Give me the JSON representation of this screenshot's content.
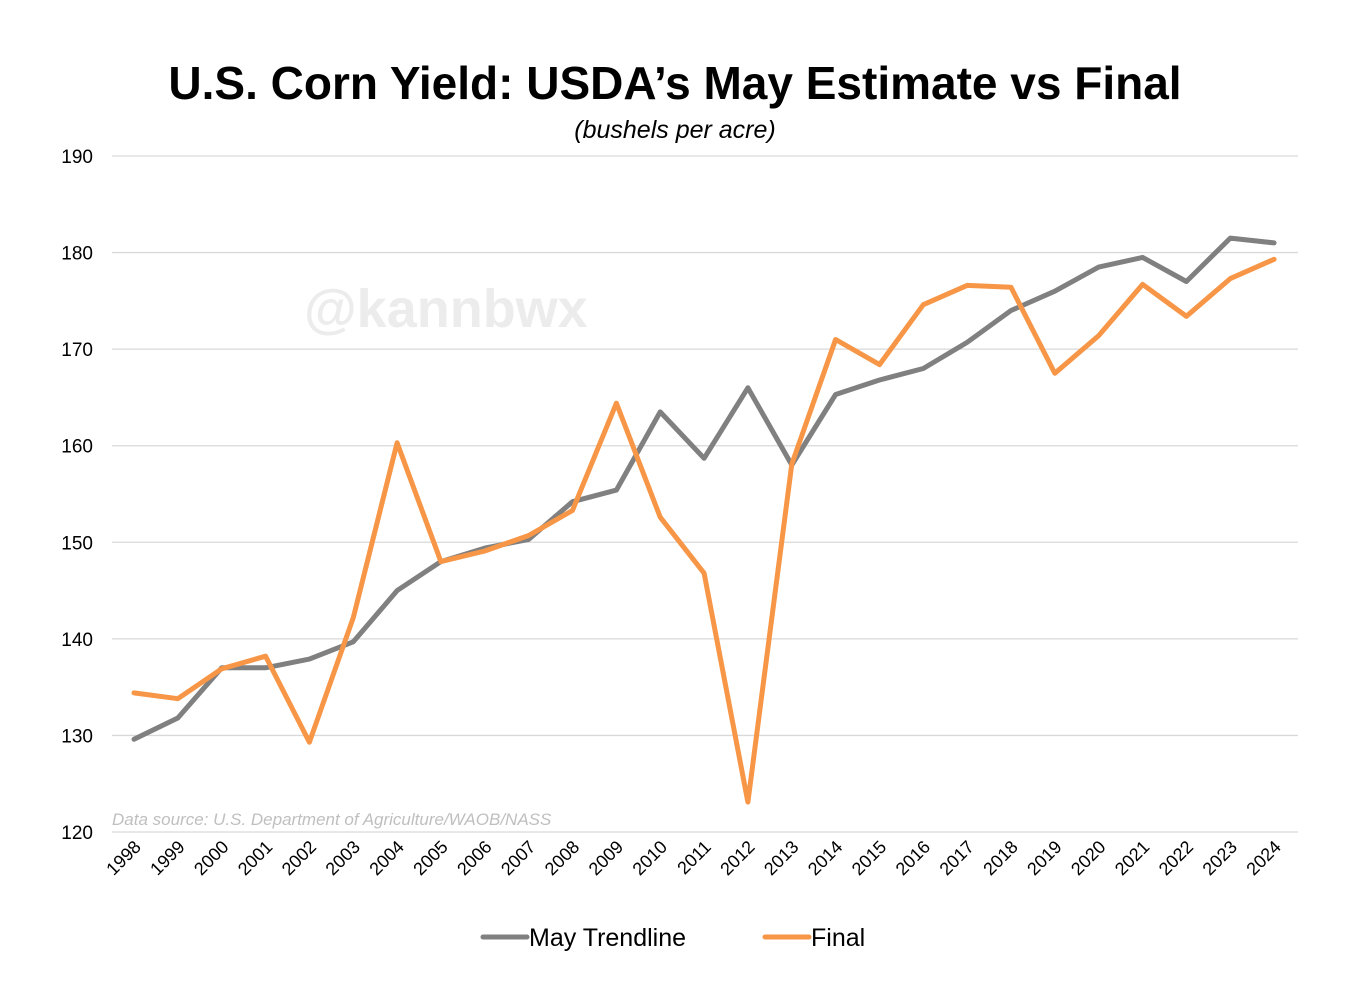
{
  "chart_data": {
    "type": "line",
    "title": "U.S. Corn Yield: USDA’s May Estimate vs Final",
    "subtitle": "(bushels per acre)",
    "xlabel": "",
    "ylabel": "",
    "ylim": [
      120,
      190
    ],
    "yticks": [
      "120",
      "130",
      "140",
      "150",
      "160",
      "170",
      "180",
      "190"
    ],
    "grid": true,
    "legend_position": "bottom",
    "watermark": "@kannbwx",
    "source": "Data source: U.S. Department of Agriculture/WAOB/NASS",
    "categories": [
      "1998",
      "1999",
      "2000",
      "2001",
      "2002",
      "2003",
      "2004",
      "2005",
      "2006",
      "2007",
      "2008",
      "2009",
      "2010",
      "2011",
      "2012",
      "2013",
      "2014",
      "2015",
      "2016",
      "2017",
      "2018",
      "2019",
      "2020",
      "2021",
      "2022",
      "2023",
      "2024"
    ],
    "series": [
      {
        "name": "May Trendline",
        "color": "#808080",
        "values": [
          129.6,
          131.8,
          137.0,
          137.0,
          137.9,
          139.7,
          145.0,
          148.0,
          149.4,
          150.3,
          154.2,
          155.4,
          163.5,
          158.7,
          166.0,
          158.0,
          165.3,
          166.8,
          168.0,
          170.7,
          174.0,
          176.0,
          178.5,
          179.5,
          177.0,
          181.5,
          181.0
        ]
      },
      {
        "name": "Final",
        "color": "#f79646",
        "values": [
          134.4,
          133.8,
          136.9,
          138.2,
          129.3,
          142.2,
          160.3,
          148.0,
          149.1,
          150.7,
          153.3,
          164.4,
          152.6,
          146.8,
          123.1,
          158.1,
          171.0,
          168.4,
          174.6,
          176.6,
          176.4,
          167.5,
          171.4,
          176.7,
          173.4,
          177.3,
          179.3
        ]
      }
    ]
  }
}
